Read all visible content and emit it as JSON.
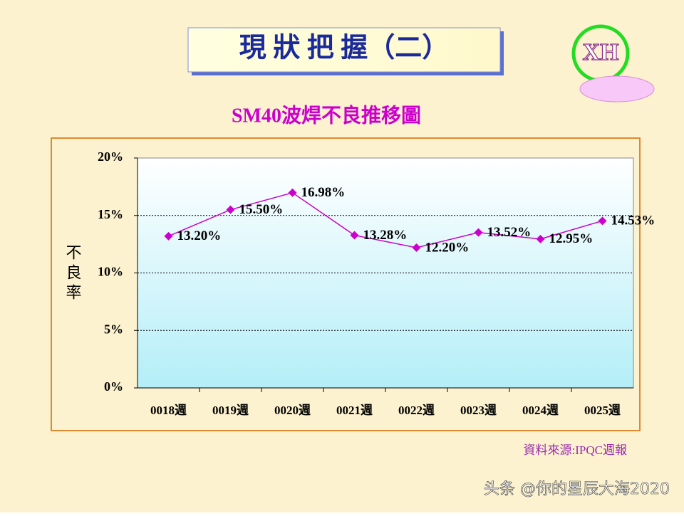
{
  "header": {
    "title": "現 狀 把 握（二）",
    "logo": "XH"
  },
  "chart_data": {
    "type": "line",
    "title": "SM40波焊不良推移圖",
    "y_label": "不良率",
    "categories": [
      "0018週",
      "0019週",
      "0020週",
      "0021週",
      "0022週",
      "0023週",
      "0024週",
      "0025週"
    ],
    "series": [
      {
        "name": "不良率",
        "color": "#cc00cc",
        "values": [
          13.2,
          15.5,
          16.98,
          13.28,
          12.2,
          13.52,
          12.95,
          14.53
        ],
        "value_labels": [
          "13.20%",
          "15.50%",
          "16.98%",
          "13.28%",
          "12.20%",
          "13.52%",
          "12.95%",
          "14.53%"
        ]
      }
    ],
    "ylim": [
      0,
      20
    ],
    "yticks": [
      {
        "value": 0,
        "label": "0%"
      },
      {
        "value": 5,
        "label": "5%"
      },
      {
        "value": 10,
        "label": "10%"
      },
      {
        "value": 15,
        "label": "15%"
      },
      {
        "value": 20,
        "label": "20%"
      }
    ],
    "grid": true
  },
  "footer": {
    "source": "資料來源:IPQC週報",
    "watermark": "头条 @你的星辰大海2020"
  }
}
